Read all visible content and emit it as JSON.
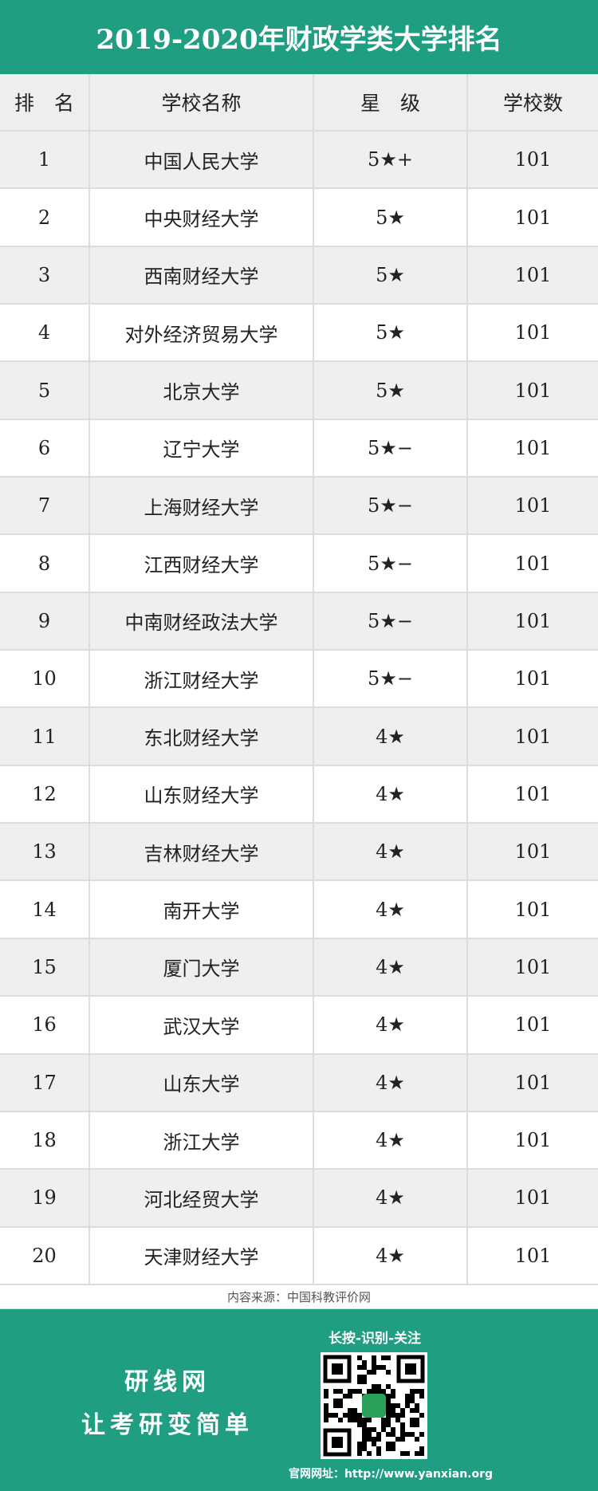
{
  "header": {
    "title": "2019-2020年财政学类大学排名"
  },
  "table": {
    "columns": [
      "排　名",
      "学校名称",
      "星　级",
      "学校数"
    ],
    "rows": [
      [
        1,
        "中国人民大学",
        "5★+",
        101
      ],
      [
        2,
        "中央财经大学",
        "5★",
        101
      ],
      [
        3,
        "西南财经大学",
        "5★",
        101
      ],
      [
        4,
        "对外经济贸易大学",
        "5★",
        101
      ],
      [
        5,
        "北京大学",
        "5★",
        101
      ],
      [
        6,
        "辽宁大学",
        "5★−",
        101
      ],
      [
        7,
        "上海财经大学",
        "5★−",
        101
      ],
      [
        8,
        "江西财经大学",
        "5★−",
        101
      ],
      [
        9,
        "中南财经政法大学",
        "5★−",
        101
      ],
      [
        10,
        "浙江财经大学",
        "5★−",
        101
      ],
      [
        11,
        "东北财经大学",
        "4★",
        101
      ],
      [
        12,
        "山东财经大学",
        "4★",
        101
      ],
      [
        13,
        "吉林财经大学",
        "4★",
        101
      ],
      [
        14,
        "南开大学",
        "4★",
        101
      ],
      [
        15,
        "厦门大学",
        "4★",
        101
      ],
      [
        16,
        "武汉大学",
        "4★",
        101
      ],
      [
        17,
        "山东大学",
        "4★",
        101
      ],
      [
        18,
        "浙江大学",
        "4★",
        101
      ],
      [
        19,
        "河北经贸大学",
        "4★",
        101
      ],
      [
        20,
        "天津财经大学",
        "4★",
        101
      ]
    ]
  },
  "source": "内容来源：中国科教评价网",
  "footer": {
    "brand": "研线网",
    "slogan": "让考研变简单",
    "qr_caption": "长按-识别-关注",
    "website": "官网网址：http://www.yanxian.org"
  }
}
